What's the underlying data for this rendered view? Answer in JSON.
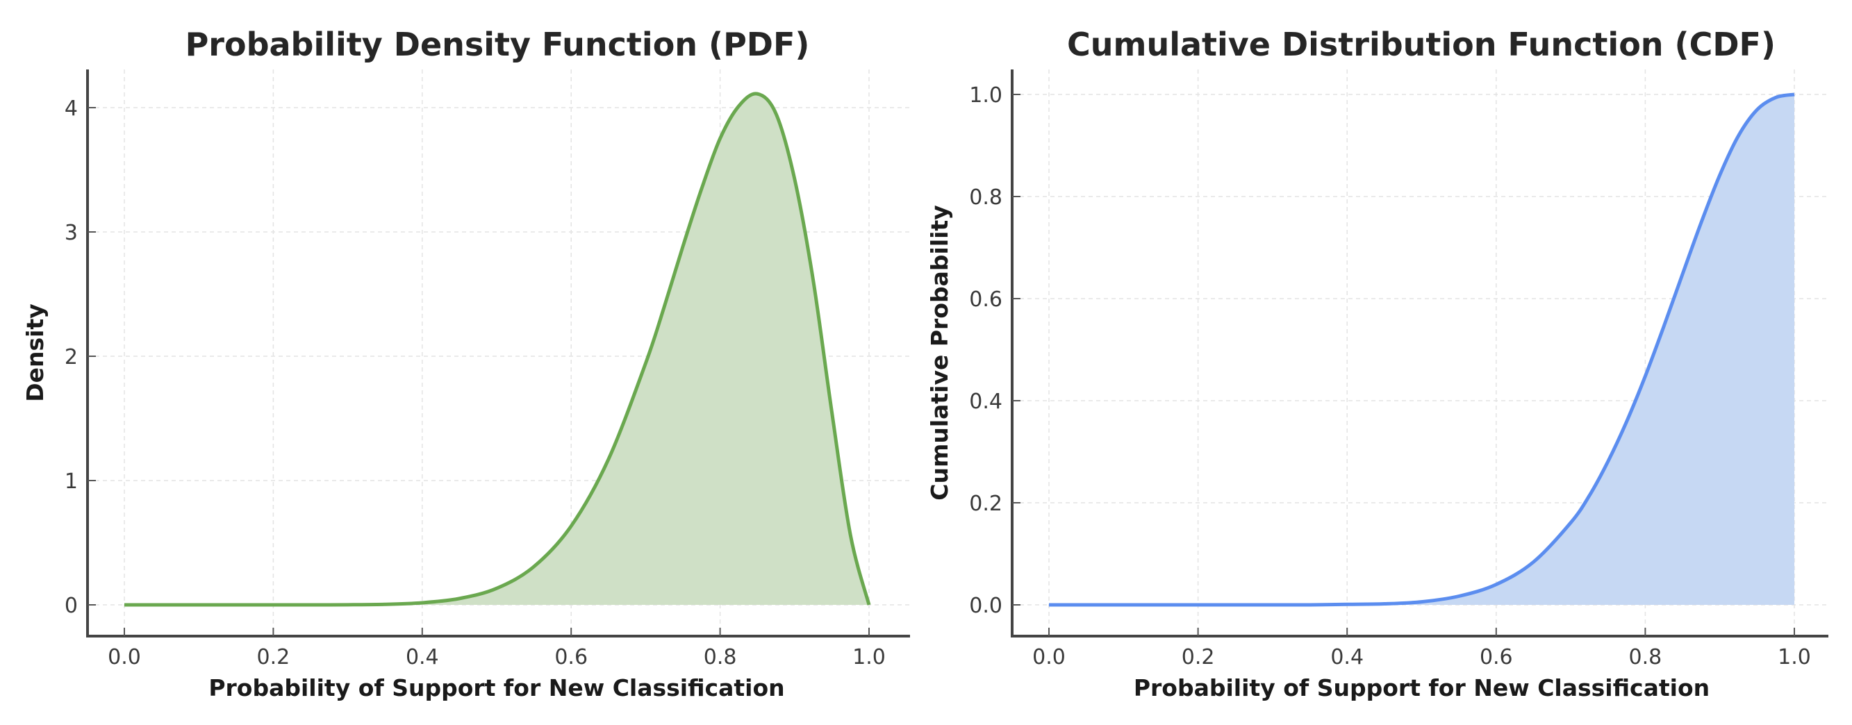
{
  "chart_data": [
    {
      "type": "area",
      "title": "Probability Density Function (PDF)",
      "xlabel": "Probability of Support for New Classification",
      "ylabel": "Density",
      "xlim": [
        -0.05,
        1.05
      ],
      "ylim": [
        -0.2,
        4.3
      ],
      "xticks": [
        0.0,
        0.2,
        0.4,
        0.6,
        0.8,
        1.0
      ],
      "xtick_labels": [
        "0.0",
        "0.2",
        "0.4",
        "0.6",
        "0.8",
        "1.0"
      ],
      "yticks": [
        0,
        1,
        2,
        3,
        4
      ],
      "ytick_labels": [
        "0",
        "1",
        "2",
        "3",
        "4"
      ],
      "grid": true,
      "line_color": "#6aa84f",
      "fill_color": "#cfe0c6",
      "x": [
        0.0,
        0.05,
        0.1,
        0.15,
        0.2,
        0.25,
        0.3,
        0.35,
        0.4,
        0.45,
        0.5,
        0.55,
        0.6,
        0.65,
        0.7,
        0.725,
        0.75,
        0.775,
        0.8,
        0.825,
        0.85,
        0.875,
        0.9,
        0.925,
        0.95,
        0.975,
        1.0
      ],
      "y": [
        0.0,
        0.0,
        0.0,
        0.0,
        0.0,
        0.0,
        0.001,
        0.004,
        0.017,
        0.051,
        0.133,
        0.308,
        0.634,
        1.17,
        1.943,
        2.398,
        2.883,
        3.345,
        3.752,
        4.012,
        4.111,
        3.952,
        3.427,
        2.612,
        1.553,
        0.563,
        0.0
      ]
    },
    {
      "type": "area",
      "title": "Cumulative Distribution Function (CDF)",
      "xlabel": "Probability of Support for New Classification",
      "ylabel": "Cumulative Probability",
      "xlim": [
        -0.05,
        1.05
      ],
      "ylim": [
        -0.05,
        1.05
      ],
      "xticks": [
        0.0,
        0.2,
        0.4,
        0.6,
        0.8,
        1.0
      ],
      "xtick_labels": [
        "0.0",
        "0.2",
        "0.4",
        "0.6",
        "0.8",
        "1.0"
      ],
      "yticks": [
        0.0,
        0.2,
        0.4,
        0.6,
        0.8,
        1.0
      ],
      "ytick_labels": [
        "0.0",
        "0.2",
        "0.4",
        "0.6",
        "0.8",
        "1.0"
      ],
      "grid": true,
      "line_color": "#5b8def",
      "fill_color": "#c6d8f3",
      "x": [
        0.0,
        0.05,
        0.1,
        0.15,
        0.2,
        0.25,
        0.3,
        0.35,
        0.4,
        0.45,
        0.5,
        0.55,
        0.6,
        0.65,
        0.7,
        0.725,
        0.75,
        0.775,
        0.8,
        0.825,
        0.85,
        0.875,
        0.9,
        0.925,
        0.95,
        0.975,
        1.0
      ],
      "y": [
        0.0,
        0.0,
        0.0,
        0.0,
        0.0,
        0.0,
        0.0,
        0.0,
        0.001,
        0.002,
        0.006,
        0.017,
        0.04,
        0.084,
        0.161,
        0.214,
        0.281,
        0.359,
        0.448,
        0.546,
        0.648,
        0.749,
        0.842,
        0.919,
        0.97,
        0.994,
        1.0
      ]
    }
  ]
}
